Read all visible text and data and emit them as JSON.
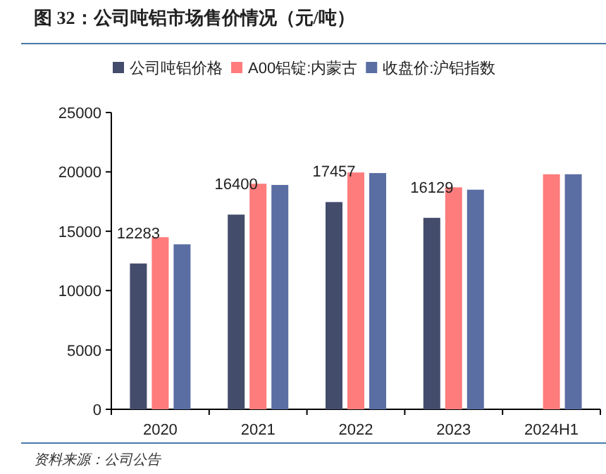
{
  "chart_data": {
    "type": "bar",
    "title": "图 32：公司吨铝市场售价情况（元/吨）",
    "categories": [
      "2020",
      "2021",
      "2022",
      "2023",
      "2024H1"
    ],
    "series": [
      {
        "name": "公司吨铝价格",
        "color": "#434c6b",
        "values": [
          12283,
          16400,
          17457,
          16129,
          null
        ],
        "value_labels": [
          "12283",
          "16400",
          "17457",
          "16129",
          null
        ]
      },
      {
        "name": "A00铝锭:内蒙古",
        "color": "#ff7c7c",
        "values": [
          14500,
          19000,
          19950,
          18700,
          19800
        ]
      },
      {
        "name": "收盘价:沪铝指数",
        "color": "#5b6ea3",
        "values": [
          13900,
          18900,
          19900,
          18500,
          19800
        ]
      }
    ],
    "ylim": [
      0,
      25000
    ],
    "yticks": [
      0,
      5000,
      10000,
      15000,
      20000,
      25000
    ],
    "grid": false,
    "legend": "top",
    "annotations": [
      "资料来源：公司公告"
    ]
  }
}
